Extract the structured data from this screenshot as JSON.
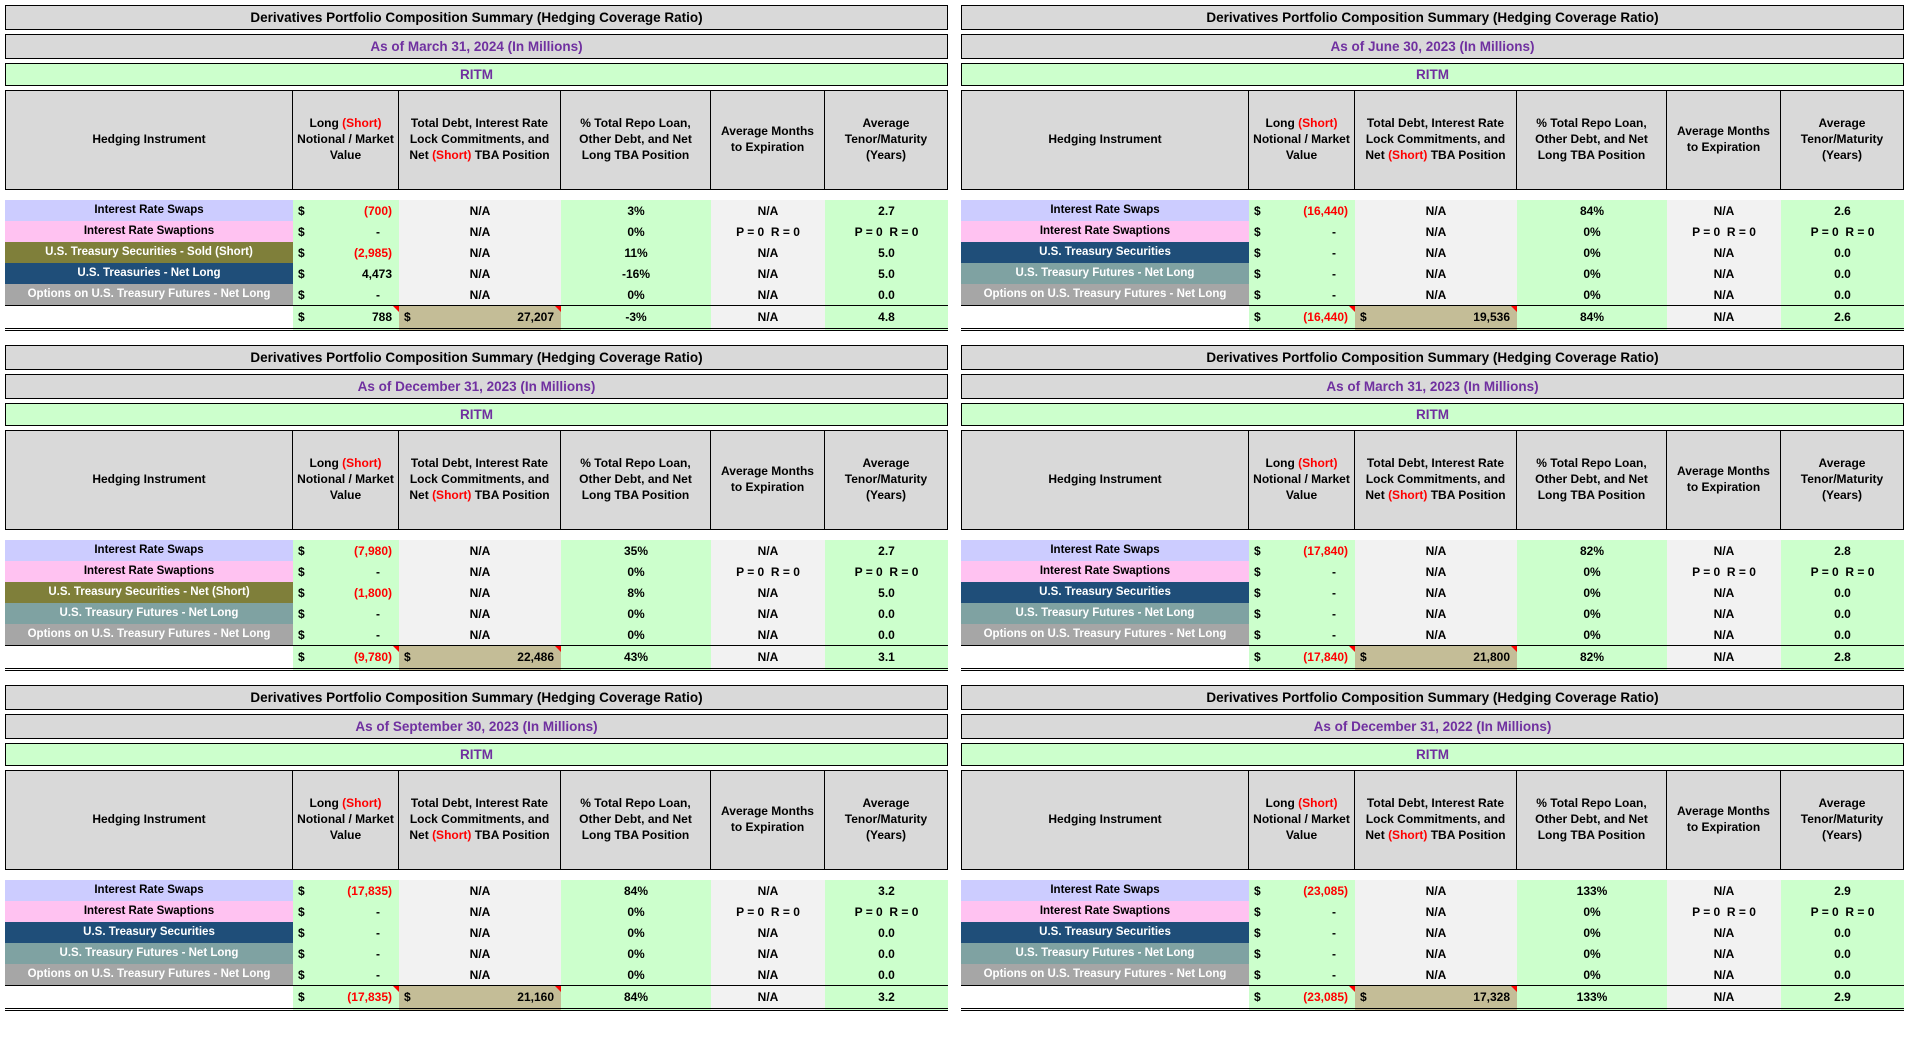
{
  "currency_symbol": "$",
  "colors": {
    "header_bg": "#d9d9d9",
    "entity_bg": "#ccffcc",
    "green_cell": "#ccffcc",
    "light_cell": "#f2f2f2",
    "purple_text": "#7030a0",
    "negative_red": "#ff0000",
    "total_debt_bg": "#c4bd97"
  },
  "row_styles": {
    "lavender": {
      "bg": "#ccccff",
      "fg": "#000000"
    },
    "pink": {
      "bg": "#ffc2f1",
      "fg": "#000000"
    },
    "olive": {
      "bg": "#7f7f3a",
      "fg": "#ffffff"
    },
    "navy": {
      "bg": "#1f4e79",
      "fg": "#ffffff"
    },
    "teal": {
      "bg": "#7fa2a2",
      "fg": "#ffffff"
    },
    "gray": {
      "bg": "#a6a6a6",
      "fg": "#ffffff"
    }
  },
  "column_headers": {
    "instrument": "Hedging Instrument",
    "notional": {
      "before": "Long ",
      "red": "(Short)",
      "after": " Notional / Market Value"
    },
    "debt": {
      "before": "Total Debt, Interest Rate Lock Commitments, and Net ",
      "red": "(Short)",
      "after": " TBA Position"
    },
    "repo_pct": "% Total Repo Loan, Other Debt, and Net Long TBA Position",
    "months": "Average Months to Expiration",
    "tenor": "Average Tenor/Maturity (Years)"
  },
  "tables": [
    {
      "title": "Derivatives Portfolio Composition Summary (Hedging Coverage Ratio)",
      "as_of": "As of March 31, 2024 (In Millions)",
      "entity": "RITM",
      "rows": [
        {
          "label": "Interest Rate Swaps",
          "style": "lavender",
          "value": "(700)",
          "neg": true,
          "debt": "N/A",
          "pct": "3%",
          "months": "N/A",
          "tenor": "2.7"
        },
        {
          "label": "Interest Rate Swaptions",
          "style": "pink",
          "value": "-",
          "neg": false,
          "debt": "N/A",
          "pct": "0%",
          "months": "P = 0  R = 0",
          "tenor": "P = 0  R = 0"
        },
        {
          "label": "U.S. Treasury Securities - Sold (Short)",
          "style": "olive",
          "value": "(2,985)",
          "neg": true,
          "debt": "N/A",
          "pct": "11%",
          "months": "N/A",
          "tenor": "5.0"
        },
        {
          "label": "U.S. Treasuries - Net Long",
          "style": "navy",
          "value": "4,473",
          "neg": false,
          "debt": "N/A",
          "pct": "-16%",
          "months": "N/A",
          "tenor": "5.0"
        },
        {
          "label": "Options on U.S. Treasury Futures - Net Long",
          "style": "gray",
          "value": "-",
          "neg": false,
          "debt": "N/A",
          "pct": "0%",
          "months": "N/A",
          "tenor": "0.0"
        }
      ],
      "total": {
        "value": "788",
        "neg": false,
        "debt": "27,207",
        "pct": "-3%",
        "months": "N/A",
        "tenor": "4.8"
      }
    },
    {
      "title": "Derivatives Portfolio Composition Summary (Hedging Coverage Ratio)",
      "as_of": "As of June 30, 2023 (In Millions)",
      "entity": "RITM",
      "rows": [
        {
          "label": "Interest Rate Swaps",
          "style": "lavender",
          "value": "(16,440)",
          "neg": true,
          "debt": "N/A",
          "pct": "84%",
          "months": "N/A",
          "tenor": "2.6"
        },
        {
          "label": "Interest Rate Swaptions",
          "style": "pink",
          "value": "-",
          "neg": false,
          "debt": "N/A",
          "pct": "0%",
          "months": "P = 0  R = 0",
          "tenor": "P = 0  R = 0"
        },
        {
          "label": "U.S. Treasury Securities",
          "style": "navy",
          "value": "-",
          "neg": false,
          "debt": "N/A",
          "pct": "0%",
          "months": "N/A",
          "tenor": "0.0"
        },
        {
          "label": "U.S. Treasury Futures - Net Long",
          "style": "teal",
          "value": "-",
          "neg": false,
          "debt": "N/A",
          "pct": "0%",
          "months": "N/A",
          "tenor": "0.0"
        },
        {
          "label": "Options on U.S. Treasury Futures - Net Long",
          "style": "gray",
          "value": "-",
          "neg": false,
          "debt": "N/A",
          "pct": "0%",
          "months": "N/A",
          "tenor": "0.0"
        }
      ],
      "total": {
        "value": "(16,440)",
        "neg": true,
        "debt": "19,536",
        "pct": "84%",
        "months": "N/A",
        "tenor": "2.6"
      }
    },
    {
      "title": "Derivatives Portfolio Composition Summary (Hedging Coverage Ratio)",
      "as_of": "As of December 31, 2023 (In Millions)",
      "entity": "RITM",
      "rows": [
        {
          "label": "Interest Rate Swaps",
          "style": "lavender",
          "value": "(7,980)",
          "neg": true,
          "debt": "N/A",
          "pct": "35%",
          "months": "N/A",
          "tenor": "2.7"
        },
        {
          "label": "Interest Rate Swaptions",
          "style": "pink",
          "value": "-",
          "neg": false,
          "debt": "N/A",
          "pct": "0%",
          "months": "P = 0  R = 0",
          "tenor": "P = 0  R = 0"
        },
        {
          "label": "U.S. Treasury Securities - Net (Short)",
          "style": "olive",
          "value": "(1,800)",
          "neg": true,
          "debt": "N/A",
          "pct": "8%",
          "months": "N/A",
          "tenor": "5.0"
        },
        {
          "label": "U.S. Treasury Futures - Net Long",
          "style": "teal",
          "value": "-",
          "neg": false,
          "debt": "N/A",
          "pct": "0%",
          "months": "N/A",
          "tenor": "0.0"
        },
        {
          "label": "Options on U.S. Treasury Futures - Net Long",
          "style": "gray",
          "value": "-",
          "neg": false,
          "debt": "N/A",
          "pct": "0%",
          "months": "N/A",
          "tenor": "0.0"
        }
      ],
      "total": {
        "value": "(9,780)",
        "neg": true,
        "debt": "22,486",
        "pct": "43%",
        "months": "N/A",
        "tenor": "3.1"
      }
    },
    {
      "title": "Derivatives Portfolio Composition Summary (Hedging Coverage Ratio)",
      "as_of": "As of March 31, 2023 (In Millions)",
      "entity": "RITM",
      "rows": [
        {
          "label": "Interest Rate Swaps",
          "style": "lavender",
          "value": "(17,840)",
          "neg": true,
          "debt": "N/A",
          "pct": "82%",
          "months": "N/A",
          "tenor": "2.8"
        },
        {
          "label": "Interest Rate Swaptions",
          "style": "pink",
          "value": "-",
          "neg": false,
          "debt": "N/A",
          "pct": "0%",
          "months": "P = 0  R = 0",
          "tenor": "P = 0  R = 0"
        },
        {
          "label": "U.S. Treasury Securities",
          "style": "navy",
          "value": "-",
          "neg": false,
          "debt": "N/A",
          "pct": "0%",
          "months": "N/A",
          "tenor": "0.0"
        },
        {
          "label": "U.S. Treasury Futures - Net Long",
          "style": "teal",
          "value": "-",
          "neg": false,
          "debt": "N/A",
          "pct": "0%",
          "months": "N/A",
          "tenor": "0.0"
        },
        {
          "label": "Options on U.S. Treasury Futures - Net Long",
          "style": "gray",
          "value": "-",
          "neg": false,
          "debt": "N/A",
          "pct": "0%",
          "months": "N/A",
          "tenor": "0.0"
        }
      ],
      "total": {
        "value": "(17,840)",
        "neg": true,
        "debt": "21,800",
        "pct": "82%",
        "months": "N/A",
        "tenor": "2.8"
      }
    },
    {
      "title": "Derivatives Portfolio Composition Summary (Hedging Coverage Ratio)",
      "as_of": "As of September 30, 2023 (In Millions)",
      "entity": "RITM",
      "rows": [
        {
          "label": "Interest Rate Swaps",
          "style": "lavender",
          "value": "(17,835)",
          "neg": true,
          "debt": "N/A",
          "pct": "84%",
          "months": "N/A",
          "tenor": "3.2"
        },
        {
          "label": "Interest Rate Swaptions",
          "style": "pink",
          "value": "-",
          "neg": false,
          "debt": "N/A",
          "pct": "0%",
          "months": "P = 0  R = 0",
          "tenor": "P = 0  R = 0"
        },
        {
          "label": "U.S. Treasury Securities",
          "style": "navy",
          "value": "-",
          "neg": false,
          "debt": "N/A",
          "pct": "0%",
          "months": "N/A",
          "tenor": "0.0"
        },
        {
          "label": "U.S. Treasury Futures - Net Long",
          "style": "teal",
          "value": "-",
          "neg": false,
          "debt": "N/A",
          "pct": "0%",
          "months": "N/A",
          "tenor": "0.0"
        },
        {
          "label": "Options on U.S. Treasury Futures - Net Long",
          "style": "gray",
          "value": "-",
          "neg": false,
          "debt": "N/A",
          "pct": "0%",
          "months": "N/A",
          "tenor": "0.0"
        }
      ],
      "total": {
        "value": "(17,835)",
        "neg": true,
        "debt": "21,160",
        "pct": "84%",
        "months": "N/A",
        "tenor": "3.2"
      }
    },
    {
      "title": "Derivatives Portfolio Composition Summary (Hedging Coverage Ratio)",
      "as_of": "As of December 31, 2022 (In Millions)",
      "entity": "RITM",
      "rows": [
        {
          "label": "Interest Rate Swaps",
          "style": "lavender",
          "value": "(23,085)",
          "neg": true,
          "debt": "N/A",
          "pct": "133%",
          "months": "N/A",
          "tenor": "2.9"
        },
        {
          "label": "Interest Rate Swaptions",
          "style": "pink",
          "value": "-",
          "neg": false,
          "debt": "N/A",
          "pct": "0%",
          "months": "P = 0  R = 0",
          "tenor": "P = 0  R = 0"
        },
        {
          "label": "U.S. Treasury Securities",
          "style": "navy",
          "value": "-",
          "neg": false,
          "debt": "N/A",
          "pct": "0%",
          "months": "N/A",
          "tenor": "0.0"
        },
        {
          "label": "U.S. Treasury Futures - Net Long",
          "style": "teal",
          "value": "-",
          "neg": false,
          "debt": "N/A",
          "pct": "0%",
          "months": "N/A",
          "tenor": "0.0"
        },
        {
          "label": "Options on U.S. Treasury Futures - Net Long",
          "style": "gray",
          "value": "-",
          "neg": false,
          "debt": "N/A",
          "pct": "0%",
          "months": "N/A",
          "tenor": "0.0"
        }
      ],
      "total": {
        "value": "(23,085)",
        "neg": true,
        "debt": "17,328",
        "pct": "133%",
        "months": "N/A",
        "tenor": "2.9"
      }
    }
  ]
}
